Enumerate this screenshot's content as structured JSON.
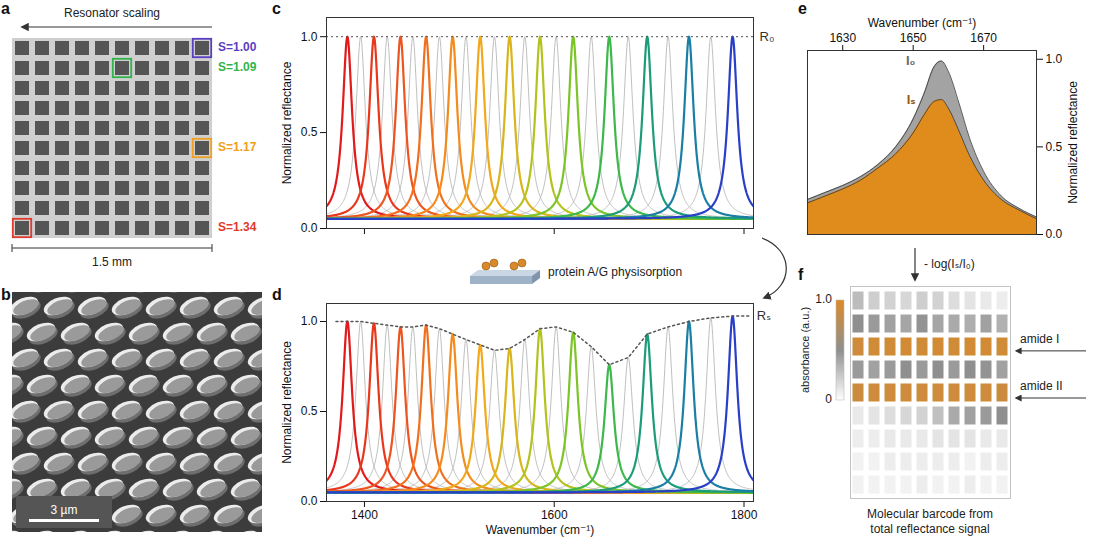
{
  "figure": {
    "a": {
      "panel_label": "a",
      "title": "Resonator scaling",
      "grid_rows": 10,
      "grid_columns": 10,
      "scale_bar": "1.5 mm",
      "highlights": [
        {
          "label": "S=1.00",
          "color": "#5a3fc0",
          "row": 1,
          "column": 10
        },
        {
          "label": "S=1.09",
          "color": "#2fb44a",
          "row": 2,
          "column": 6
        },
        {
          "label": "S=1.17",
          "color": "#f0a020",
          "row": 6,
          "column": 10
        },
        {
          "label": "S=1.34",
          "color": "#e03a2a",
          "row": 10,
          "column": 1
        }
      ]
    },
    "b": {
      "panel_label": "b",
      "scale_bar": "3 µm"
    },
    "c_to_d": "protein A/G physisorption",
    "e_to_f": "- log(Iₛ/I₀)"
  },
  "chart_data": [
    {
      "panel_label": "c",
      "type": "line",
      "xlim": [
        1360,
        1810
      ],
      "xticks": [
        1400,
        1600,
        1800
      ],
      "ylim": [
        0,
        1.1
      ],
      "yticks": [
        {
          "value": 0,
          "label": "0.0"
        },
        0.5,
        {
          "value": 1,
          "label": "1.0"
        }
      ],
      "y_label": "Normalized reflectance",
      "tick_labels": "y",
      "baseline": 0.05,
      "fwhm": 12,
      "series": [
        {
          "color": "#b8b8b8",
          "line_style": "thin",
          "centers": [
            1396,
            1424,
            1451,
            1479,
            1507,
            1537,
            1569,
            1602,
            1639,
            1678,
            1720,
            1765
          ],
          "peaks": [
            1,
            1,
            1,
            1,
            1,
            1,
            1,
            1,
            1,
            1,
            1,
            1
          ]
        },
        {
          "colors": [
            "#e31a1c",
            "#e8381c",
            "#ec5420",
            "#f07020",
            "#f38b1f",
            "#f2a81d",
            "#d8b51c",
            "#b4c21e",
            "#7dc428",
            "#3eb84a",
            "#1d9c78",
            "#1b7fa4",
            "#2a3fc8"
          ],
          "line_style": "bold",
          "centers": [
            1382,
            1410,
            1438,
            1465,
            1493,
            1522,
            1553,
            1585,
            1620,
            1658,
            1698,
            1742,
            1788
          ],
          "peaks": [
            1,
            1,
            1,
            1,
            1,
            1,
            1,
            1,
            1,
            1,
            1,
            1,
            1
          ]
        }
      ],
      "reference": {
        "name": "R₀",
        "value": 1
      }
    },
    {
      "panel_label": "d",
      "type": "line",
      "xlim": [
        1360,
        1810
      ],
      "xticks": [
        1400,
        1600,
        1800
      ],
      "ylim": [
        0,
        1.1
      ],
      "yticks": [
        {
          "value": 0,
          "label": "0.0"
        },
        0.5,
        {
          "value": 1,
          "label": "1.0"
        }
      ],
      "x_label": "Wavenumber (cm⁻¹)",
      "y_label": "Normalized reflectance",
      "baseline": 0.05,
      "fwhm": 12,
      "series": [
        {
          "color": "#b8b8b8",
          "line_style": "thin",
          "centers": [
            1396,
            1424,
            1451,
            1479,
            1507,
            1537,
            1569,
            1602,
            1639,
            1678,
            1720,
            1765
          ],
          "peaks": [
            1.0,
            0.98,
            0.97,
            0.96,
            0.9,
            0.84,
            0.9,
            0.97,
            0.86,
            0.8,
            0.97,
            1.02
          ]
        },
        {
          "colors": [
            "#e31a1c",
            "#e8381c",
            "#ec5420",
            "#f07020",
            "#f38b1f",
            "#f2a81d",
            "#d8b51c",
            "#b4c21e",
            "#7dc428",
            "#3eb84a",
            "#1d9c78",
            "#1b7fa4",
            "#2a3fc8"
          ],
          "line_style": "bold",
          "centers": [
            1382,
            1410,
            1438,
            1465,
            1493,
            1522,
            1553,
            1585,
            1620,
            1658,
            1698,
            1742,
            1788
          ],
          "peaks": [
            1.0,
            0.99,
            0.97,
            0.98,
            0.93,
            0.87,
            0.85,
            0.96,
            0.94,
            0.76,
            0.93,
            1.0,
            1.03
          ]
        }
      ],
      "envelope": {
        "name": "Rₛ",
        "x": [
          1370,
          1382,
          1396,
          1410,
          1424,
          1438,
          1451,
          1465,
          1479,
          1493,
          1507,
          1522,
          1537,
          1553,
          1569,
          1585,
          1602,
          1620,
          1639,
          1658,
          1678,
          1698,
          1720,
          1742,
          1765,
          1788,
          1805
        ],
        "y": [
          1.0,
          1.0,
          1.0,
          0.99,
          0.98,
          0.97,
          0.97,
          0.98,
          0.96,
          0.93,
          0.9,
          0.87,
          0.84,
          0.85,
          0.9,
          0.96,
          0.97,
          0.94,
          0.86,
          0.76,
          0.8,
          0.93,
          0.97,
          1.0,
          1.02,
          1.03,
          1.03
        ]
      }
    },
    {
      "panel_label": "e",
      "type": "area",
      "x": [
        1620,
        1625,
        1630,
        1635,
        1640,
        1645,
        1650,
        1653,
        1656,
        1658,
        1660,
        1663,
        1666,
        1670,
        1675,
        1680,
        1685
      ],
      "xlim": [
        1620,
        1685
      ],
      "xticks": [
        1630,
        1650,
        1670
      ],
      "x_label": "Wavenumber (cm⁻¹)",
      "ylim": [
        0,
        1.05
      ],
      "yticks": [
        {
          "value": 0,
          "label": "0.0"
        },
        0.5,
        {
          "value": 1,
          "label": "1.0"
        }
      ],
      "y_label": "Normalized reflectance",
      "series": [
        {
          "name": "I₀",
          "color": "#a3a3a3",
          "values": [
            0.2,
            0.24,
            0.28,
            0.33,
            0.4,
            0.5,
            0.66,
            0.8,
            0.96,
            0.99,
            0.93,
            0.75,
            0.55,
            0.36,
            0.22,
            0.15,
            0.1
          ]
        },
        {
          "name": "Iₛ",
          "color": "#e08c1c",
          "values": [
            0.18,
            0.22,
            0.26,
            0.31,
            0.38,
            0.46,
            0.58,
            0.68,
            0.76,
            0.77,
            0.72,
            0.59,
            0.45,
            0.31,
            0.2,
            0.14,
            0.09
          ]
        }
      ]
    },
    {
      "panel_label": "f",
      "type": "heatmap",
      "cells": [
        [
          0.3,
          0.22,
          0.2,
          0.18,
          0.22,
          0.2,
          0.15,
          0.12,
          0.1,
          0.08
        ],
        [
          0.5,
          0.45,
          0.42,
          0.4,
          0.48,
          0.4,
          0.38,
          0.36,
          0.42,
          0.35
        ],
        [
          0.9,
          0.92,
          0.92,
          0.93,
          0.92,
          0.93,
          0.92,
          0.93,
          0.93,
          0.92
        ],
        [
          0.45,
          0.42,
          0.45,
          0.5,
          0.45,
          0.5,
          0.45,
          0.5,
          0.48,
          0.42
        ],
        [
          0.88,
          0.9,
          0.9,
          0.9,
          0.9,
          0.9,
          0.9,
          0.9,
          0.9,
          0.88
        ],
        [
          0.1,
          0.12,
          0.15,
          0.18,
          0.2,
          0.28,
          0.38,
          0.42,
          0.45,
          0.5
        ],
        [
          0.08,
          0.08,
          0.1,
          0.1,
          0.1,
          0.12,
          0.12,
          0.12,
          0.1,
          0.1
        ],
        [
          0.06,
          0.06,
          0.08,
          0.08,
          0.08,
          0.08,
          0.08,
          0.06,
          0.08,
          0.08
        ],
        [
          0.06,
          0.06,
          0.06,
          0.06,
          0.08,
          0.06,
          0.06,
          0.08,
          0.06,
          0.06
        ]
      ],
      "row_labels": [
        null,
        null,
        "amide I",
        null,
        "amide II",
        null,
        null,
        null,
        null
      ],
      "colorbar": {
        "label": "absorbance (a.u.)",
        "range": [
          0,
          1
        ],
        "ticks": [
          0,
          {
            "value": 1,
            "label": "1.0"
          }
        ],
        "colors": [
          "#ffffff",
          "#8f8f8f",
          "#dc8a26"
        ]
      },
      "caption": "Molecular barcode from total reflectance signal"
    }
  ]
}
